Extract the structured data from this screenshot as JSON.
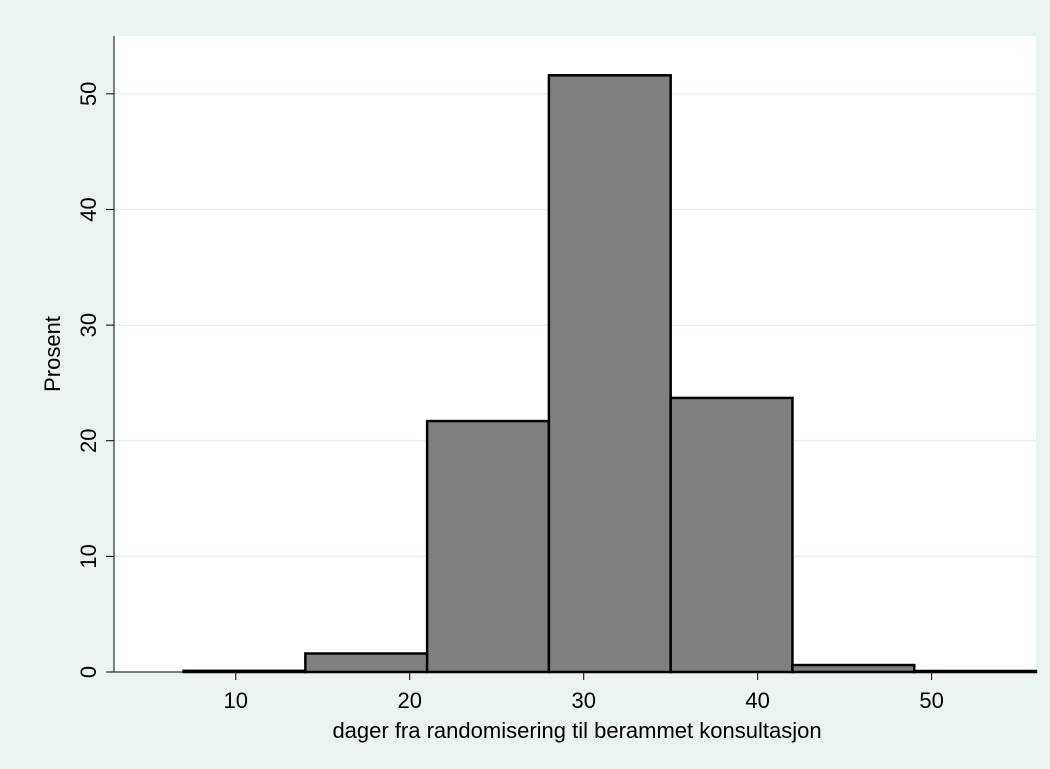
{
  "chart_data": {
    "type": "bar",
    "xlabel": "dager fra randomisering til berammet konsultasjon",
    "ylabel": "Prosent",
    "xlim": [
      3,
      56
    ],
    "ylim": [
      0,
      55
    ],
    "x_ticks": [
      10,
      20,
      30,
      40,
      50
    ],
    "y_ticks": [
      0,
      10,
      20,
      30,
      40,
      50
    ],
    "grid": true,
    "bins": [
      {
        "start": 7,
        "end": 14,
        "value": 0.1
      },
      {
        "start": 14,
        "end": 21,
        "value": 1.6
      },
      {
        "start": 21,
        "end": 28,
        "value": 21.7
      },
      {
        "start": 28,
        "end": 35,
        "value": 51.6
      },
      {
        "start": 35,
        "end": 42,
        "value": 23.7
      },
      {
        "start": 42,
        "end": 49,
        "value": 0.6
      },
      {
        "start": 49,
        "end": 56,
        "value": 0.05
      }
    ],
    "colors": {
      "bar_fill": "#808080",
      "bar_stroke": "#000000",
      "plot_bg": "#ffffff",
      "outer_bg": "#eaf2f3",
      "grid": "#e4eeee"
    }
  }
}
